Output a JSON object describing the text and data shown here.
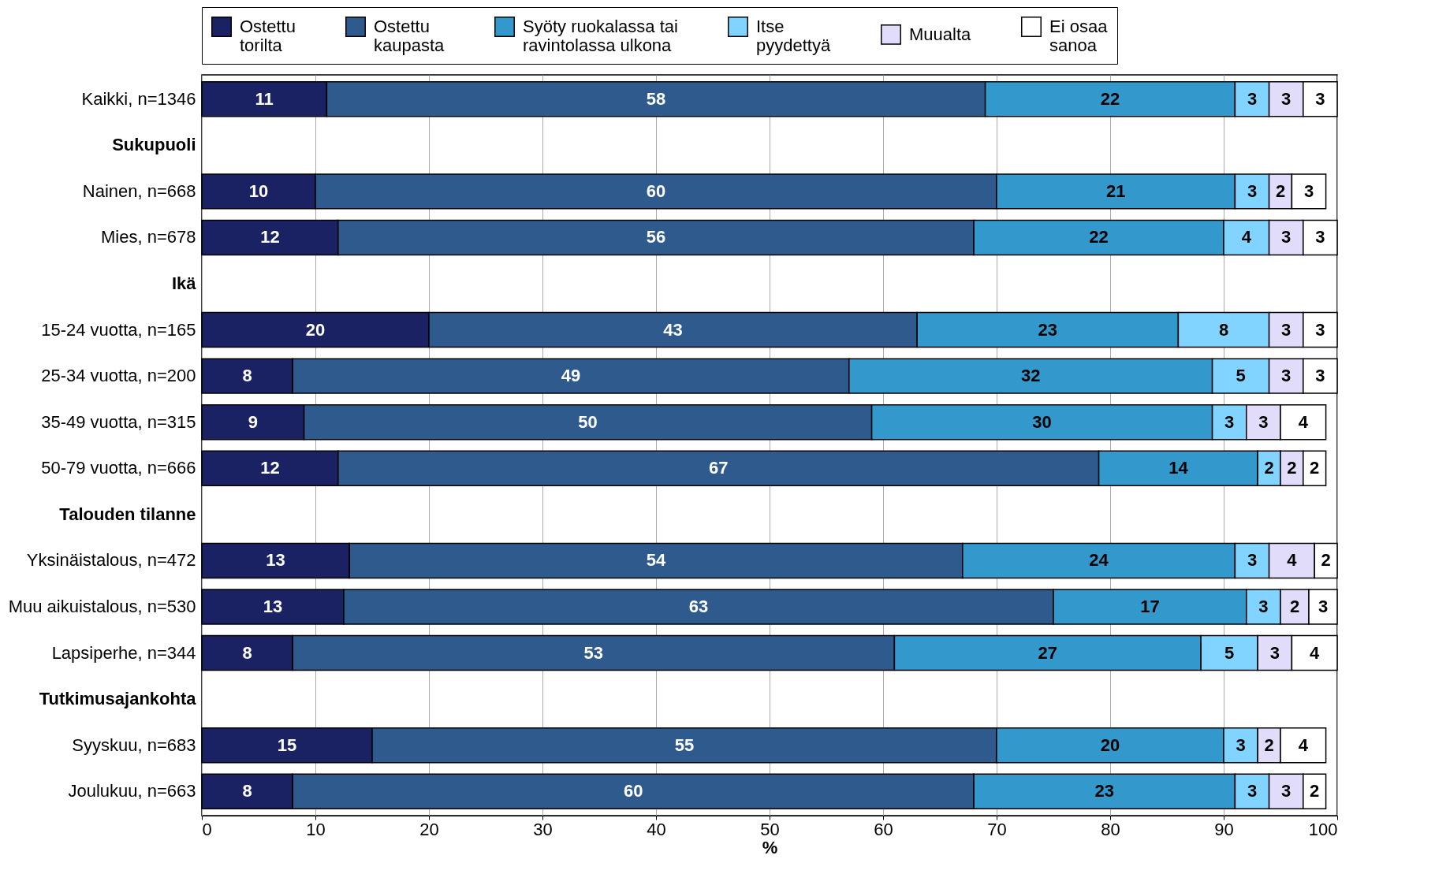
{
  "chart_data": {
    "type": "bar",
    "orientation": "horizontal",
    "stacked": true,
    "legend": "top",
    "grid": "x",
    "xlabel": "%",
    "xlim": [
      0,
      100
    ],
    "xticks": [
      0,
      10,
      20,
      30,
      40,
      50,
      60,
      70,
      80,
      90,
      100
    ],
    "categories": [
      "Kaikki, n=1346",
      "Sukupuoli",
      "Nainen, n=668",
      "Mies, n=678",
      "Ikä",
      "15-24 vuotta, n=165",
      "25-34 vuotta, n=200",
      "35-49 vuotta, n=315",
      "50-79 vuotta, n=666",
      "Talouden tilanne",
      "Yksinäistalous, n=472",
      "Muu aikuistalous, n=530",
      "Lapsiperhe, n=344",
      "Tutkimusajankohta",
      "Syyskuu, n=683",
      "Joulukuu, n=663"
    ],
    "series": [
      {
        "name": "Ostettu\ntorilta",
        "color": "#1a2263",
        "values": [
          11,
          null,
          10,
          12,
          null,
          20,
          8,
          9,
          12,
          null,
          13,
          12.5,
          8,
          null,
          15,
          8
        ],
        "value_labels": [
          "11",
          null,
          "10",
          "12",
          null,
          "20",
          "8",
          "9",
          "12",
          null,
          "13",
          "13",
          "8",
          null,
          "15",
          "8"
        ]
      },
      {
        "name": "Ostettu\nkaupasta",
        "color": "#2f5a8e",
        "values": [
          58,
          null,
          60,
          56,
          null,
          43,
          49,
          50,
          67,
          null,
          54,
          62.5,
          53,
          null,
          55,
          60
        ],
        "value_labels": [
          "58",
          null,
          "60",
          "56",
          null,
          "43",
          "49",
          "50",
          "67",
          null,
          "54",
          "63",
          "53",
          null,
          "55",
          "60"
        ]
      },
      {
        "name": "Syöty ruokalassa tai\nravintolassa ulkona",
        "color": "#3399cc",
        "values": [
          22,
          null,
          21,
          22,
          null,
          23,
          32,
          30,
          14,
          null,
          24,
          17,
          27,
          null,
          20,
          23
        ],
        "value_labels": [
          "22",
          null,
          "21",
          "22",
          null,
          "23",
          "32",
          "30",
          "14",
          null,
          "24",
          "17",
          "27",
          null,
          "20",
          "23"
        ]
      },
      {
        "name": "Itse\npyydettyä",
        "color": "#80d4ff",
        "values": [
          3,
          null,
          3,
          4,
          null,
          8,
          5,
          3,
          2,
          null,
          3,
          3,
          5,
          null,
          3,
          3
        ],
        "value_labels": [
          "3",
          null,
          "3",
          "4",
          null,
          "8",
          "5",
          "3",
          "2",
          null,
          "3",
          "3",
          "5",
          null,
          "3",
          "3"
        ]
      },
      {
        "name": "Muualta",
        "color": "#e0dcfa",
        "values": [
          3,
          null,
          2,
          3,
          null,
          3,
          3,
          3,
          2,
          null,
          4,
          2.5,
          3,
          null,
          2,
          3
        ],
        "value_labels": [
          "3",
          null,
          "2",
          "3",
          null,
          "3",
          "3",
          "3",
          "2",
          null,
          "4",
          "2",
          "3",
          null,
          "2",
          "3"
        ]
      },
      {
        "name": "Ei osaa\nsanoa",
        "color": "#ffffff",
        "values": [
          3,
          null,
          3,
          3,
          null,
          3,
          3,
          4,
          2,
          null,
          2,
          2.5,
          4,
          null,
          4,
          2
        ],
        "value_labels": [
          "3",
          null,
          "3",
          "3",
          null,
          "3",
          "3",
          "4",
          "2",
          null,
          "2",
          "3",
          "4",
          null,
          "4",
          "2"
        ]
      }
    ]
  }
}
